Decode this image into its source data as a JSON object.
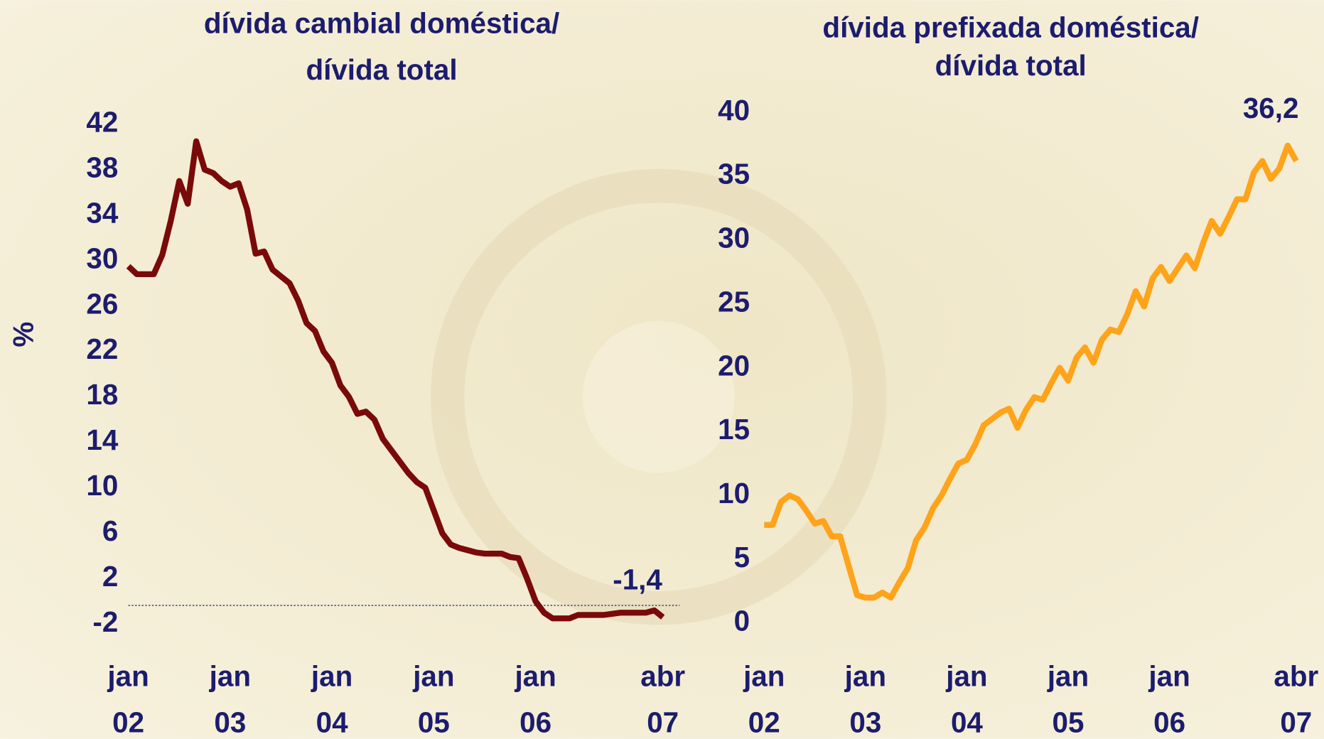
{
  "chart_data": [
    {
      "type": "line",
      "title": [
        "dívida cambial doméstica/",
        "dívida total"
      ],
      "y_label": "%",
      "x": [
        "2002-01",
        "2002-02",
        "2002-03",
        "2002-04",
        "2002-05",
        "2002-06",
        "2002-07",
        "2002-08",
        "2002-09",
        "2002-10",
        "2002-11",
        "2002-12",
        "2003-01",
        "2003-02",
        "2003-03",
        "2003-04",
        "2003-05",
        "2003-06",
        "2003-07",
        "2003-08",
        "2003-09",
        "2003-10",
        "2003-11",
        "2003-12",
        "2004-01",
        "2004-02",
        "2004-03",
        "2004-04",
        "2004-05",
        "2004-06",
        "2004-07",
        "2004-08",
        "2004-09",
        "2004-10",
        "2004-11",
        "2004-12",
        "2005-01",
        "2005-02",
        "2005-03",
        "2005-04",
        "2005-05",
        "2005-06",
        "2005-07",
        "2005-08",
        "2005-09",
        "2005-10",
        "2005-11",
        "2005-12",
        "2006-01",
        "2006-02",
        "2006-03",
        "2006-04",
        "2006-05",
        "2006-06",
        "2006-07",
        "2006-08",
        "2006-09",
        "2006-10",
        "2006-11",
        "2006-12",
        "2007-01",
        "2007-02",
        "2007-03",
        "2007-04"
      ],
      "values": [
        29.5,
        28.8,
        28.8,
        28.8,
        30.5,
        33.5,
        37,
        35,
        40.5,
        38,
        37.7,
        37,
        36.5,
        36.8,
        34.5,
        30.6,
        30.8,
        29.2,
        28.6,
        28,
        26.5,
        24.5,
        23.8,
        22,
        21,
        19,
        18,
        16.5,
        16.7,
        16,
        14.3,
        13.3,
        12.3,
        11.3,
        10.5,
        10,
        8,
        6,
        5,
        4.7,
        4.5,
        4.3,
        4.2,
        4.2,
        4.2,
        3.9,
        3.8,
        2,
        0,
        -1,
        -1.5,
        -1.5,
        -1.5,
        -1.2,
        -1.2,
        -1.2,
        -1.2,
        -1.1,
        -1,
        -1,
        -1,
        -1,
        -0.8,
        -1.4
      ],
      "value_labels": [
        null,
        null,
        null,
        null,
        null,
        null,
        null,
        null,
        null,
        null,
        null,
        null,
        null,
        null,
        null,
        null,
        null,
        null,
        null,
        null,
        null,
        null,
        null,
        null,
        null,
        null,
        null,
        null,
        null,
        null,
        null,
        null,
        null,
        null,
        null,
        null,
        null,
        null,
        null,
        null,
        null,
        null,
        null,
        null,
        null,
        null,
        null,
        null,
        null,
        null,
        null,
        null,
        null,
        null,
        null,
        null,
        null,
        null,
        null,
        null,
        null,
        null,
        null,
        "-1,4"
      ],
      "color": "#7a0a0a",
      "xlim": [
        "2002-01",
        "2007-04"
      ],
      "xticks": [
        {
          "value": "2002-01",
          "label": [
            "jan",
            "02"
          ]
        },
        {
          "value": "2003-01",
          "label": [
            "jan",
            "03"
          ]
        },
        {
          "value": "2004-01",
          "label": [
            "jan",
            "04"
          ]
        },
        {
          "value": "2005-01",
          "label": [
            "jan",
            "05"
          ]
        },
        {
          "value": "2006-01",
          "label": [
            "jan",
            "06"
          ]
        },
        {
          "value": "2007-04",
          "label": [
            "abr",
            "07"
          ]
        }
      ],
      "ylim": [
        -2,
        42
      ],
      "yticks": [
        42,
        38,
        34,
        30,
        26,
        22,
        18,
        14,
        10,
        6,
        2,
        -2
      ]
    },
    {
      "type": "line",
      "title": [
        "dívida prefixada doméstica/",
        "dívida total"
      ],
      "x": [
        "2002-01",
        "2002-02",
        "2002-03",
        "2002-04",
        "2002-05",
        "2002-06",
        "2002-07",
        "2002-08",
        "2002-09",
        "2002-10",
        "2002-11",
        "2002-12",
        "2003-01",
        "2003-02",
        "2003-03",
        "2003-04",
        "2003-05",
        "2003-06",
        "2003-07",
        "2003-08",
        "2003-09",
        "2003-10",
        "2003-11",
        "2003-12",
        "2004-01",
        "2004-02",
        "2004-03",
        "2004-04",
        "2004-05",
        "2004-06",
        "2004-07",
        "2004-08",
        "2004-09",
        "2004-10",
        "2004-11",
        "2004-12",
        "2005-01",
        "2005-02",
        "2005-03",
        "2005-04",
        "2005-05",
        "2005-06",
        "2005-07",
        "2005-08",
        "2005-09",
        "2005-10",
        "2005-11",
        "2005-12",
        "2006-01",
        "2006-02",
        "2006-03",
        "2006-04",
        "2006-05",
        "2006-06",
        "2006-07",
        "2006-08",
        "2006-09",
        "2006-10",
        "2006-11",
        "2006-12",
        "2007-01",
        "2007-02",
        "2007-03",
        "2007-04"
      ],
      "values": [
        7.7,
        7.7,
        9.5,
        10,
        9.7,
        8.8,
        7.8,
        8,
        6.8,
        6.8,
        4.5,
        2.2,
        2,
        2,
        2.4,
        2,
        3.2,
        4.3,
        6.5,
        7.5,
        9,
        10,
        11.3,
        12.5,
        12.8,
        14,
        15.5,
        16,
        16.5,
        16.8,
        15.3,
        16.7,
        17.7,
        17.5,
        18.8,
        20,
        19,
        20.8,
        21.6,
        20.4,
        22.2,
        23,
        22.8,
        24.2,
        26,
        24.8,
        27,
        27.9,
        26.8,
        27.8,
        28.8,
        27.8,
        29.8,
        31.5,
        30.5,
        31.8,
        33.2,
        33.2,
        35.3,
        36.2,
        34.8,
        35.6,
        37.4,
        36.2
      ],
      "value_labels": [
        null,
        null,
        null,
        null,
        null,
        null,
        null,
        null,
        null,
        null,
        null,
        null,
        null,
        null,
        null,
        null,
        null,
        null,
        null,
        null,
        null,
        null,
        null,
        null,
        null,
        null,
        null,
        null,
        null,
        null,
        null,
        null,
        null,
        null,
        null,
        null,
        null,
        null,
        null,
        null,
        null,
        null,
        null,
        null,
        null,
        null,
        null,
        null,
        null,
        null,
        null,
        null,
        null,
        null,
        null,
        null,
        null,
        null,
        null,
        null,
        null,
        null,
        null,
        "36,2"
      ],
      "color": "#ffa31a",
      "xlim": [
        "2002-01",
        "2007-04"
      ],
      "xticks": [
        {
          "value": "2002-01",
          "label": [
            "jan",
            "02"
          ]
        },
        {
          "value": "2003-01",
          "label": [
            "jan",
            "03"
          ]
        },
        {
          "value": "2004-01",
          "label": [
            "jan",
            "04"
          ]
        },
        {
          "value": "2005-01",
          "label": [
            "jan",
            "05"
          ]
        },
        {
          "value": "2006-01",
          "label": [
            "jan",
            "06"
          ]
        },
        {
          "value": "2007-04",
          "label": [
            "abr",
            "07"
          ]
        }
      ],
      "ylim": [
        0,
        40
      ],
      "yticks": [
        40,
        35,
        30,
        25,
        20,
        15,
        10,
        5,
        0
      ]
    }
  ]
}
